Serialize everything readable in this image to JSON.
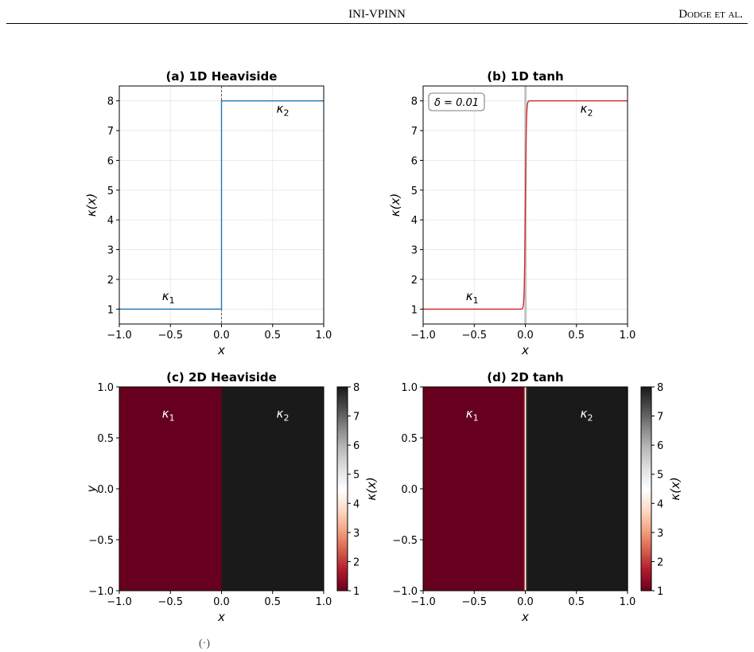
{
  "header": {
    "title": "INI-VPINN",
    "authors": "Dodge et al."
  },
  "caption_fragment": "(·)",
  "chart_data": [
    {
      "id": "a",
      "type": "line",
      "title": "(a) 1D Heaviside",
      "xlabel": "x",
      "ylabel": "κ(x)",
      "xlim": [
        -1.0,
        1.0
      ],
      "ylim": [
        0.5,
        8.5
      ],
      "xticks": [
        -1.0,
        -0.5,
        0.0,
        0.5,
        1.0
      ],
      "xtick_labels": [
        "−1.0",
        "−0.5",
        "0.0",
        "0.5",
        "1.0"
      ],
      "yticks": [
        1,
        2,
        3,
        4,
        5,
        6,
        7,
        8
      ],
      "ytick_labels": [
        "1",
        "2",
        "3",
        "4",
        "5",
        "6",
        "7",
        "8"
      ],
      "grid": true,
      "series": [
        {
          "color": "#1f77b4",
          "x": [
            -1.0,
            0.0,
            0.0,
            1.0
          ],
          "y": [
            1,
            1,
            8,
            8
          ]
        }
      ],
      "vline": {
        "x": 0.0,
        "color": "#333333",
        "style": "dashed"
      },
      "annotations": [
        {
          "base": "κ",
          "sub": "1",
          "x": -0.52,
          "y": 1.3
        },
        {
          "base": "κ",
          "sub": "2",
          "x": 0.6,
          "y": 7.6
        }
      ]
    },
    {
      "id": "b",
      "type": "line",
      "title": "(b) 1D tanh",
      "xlabel": "x",
      "ylabel": "κ(x)",
      "xlim": [
        -1.0,
        1.0
      ],
      "ylim": [
        0.5,
        8.5
      ],
      "xticks": [
        -1.0,
        -0.5,
        0.0,
        0.5,
        1.0
      ],
      "xtick_labels": [
        "−1.0",
        "−0.5",
        "0.0",
        "0.5",
        "1.0"
      ],
      "yticks": [
        1,
        2,
        3,
        4,
        5,
        6,
        7,
        8
      ],
      "ytick_labels": [
        "1",
        "2",
        "3",
        "4",
        "5",
        "6",
        "7",
        "8"
      ],
      "grid": true,
      "series": [
        {
          "color": "#d62728",
          "function": "1 + 3.5*(1 + tanh(x/delta))",
          "delta": 0.01
        }
      ],
      "band": {
        "x": [
          -0.01,
          0.01
        ],
        "color": "#bbbbbb"
      },
      "textbox": "δ = 0.01",
      "annotations": [
        {
          "base": "κ",
          "sub": "1",
          "x": -0.52,
          "y": 1.3
        },
        {
          "base": "κ",
          "sub": "2",
          "x": 0.6,
          "y": 7.6
        }
      ]
    },
    {
      "id": "c",
      "type": "heatmap",
      "title": "(c) 2D Heaviside",
      "xlabel": "x",
      "ylabel": "y",
      "xlim": [
        -1.0,
        1.0
      ],
      "ylim": [
        -1.0,
        1.0
      ],
      "xticks": [
        -1.0,
        -0.5,
        0.0,
        0.5,
        1.0
      ],
      "xtick_labels": [
        "−1.0",
        "−0.5",
        "0.0",
        "0.5",
        "1.0"
      ],
      "yticks": [
        -1.0,
        -0.5,
        0.0,
        0.5,
        1.0
      ],
      "ytick_labels": [
        "−1.0",
        "−0.5",
        "0.0",
        "0.5",
        "1.0"
      ],
      "regions": [
        {
          "x": [
            -1.0,
            0.0
          ],
          "value": 1
        },
        {
          "x": [
            0.0,
            1.0
          ],
          "value": 8
        }
      ],
      "colorbar": {
        "label": "κ(x)",
        "range": [
          1,
          8
        ],
        "ticks": [
          1,
          2,
          3,
          4,
          5,
          6,
          7,
          8
        ],
        "colormap": "RdGy"
      },
      "annotations": [
        {
          "base": "κ",
          "sub": "1",
          "x": -0.52,
          "y": 0.7
        },
        {
          "base": "κ",
          "sub": "2",
          "x": 0.6,
          "y": 0.7
        }
      ]
    },
    {
      "id": "d",
      "type": "heatmap",
      "title": "(d) 2D tanh",
      "xlabel": "x",
      "ylabel": "",
      "xlim": [
        -1.0,
        1.0
      ],
      "ylim": [
        -1.0,
        1.0
      ],
      "xticks": [
        -1.0,
        -0.5,
        0.0,
        0.5,
        1.0
      ],
      "xtick_labels": [
        "−1.0",
        "−0.5",
        "0.0",
        "0.5",
        "1.0"
      ],
      "yticks": [
        -1.0,
        -0.5,
        0.0,
        0.5,
        1.0
      ],
      "ytick_labels": [
        "−1.0",
        "−0.5",
        "0.0",
        "0.5",
        "1.0"
      ],
      "function": "1 + 3.5*(1 + tanh(x/delta))",
      "delta": 0.01,
      "colorbar": {
        "label": "κ(x)",
        "range": [
          1,
          8
        ],
        "ticks": [
          1,
          2,
          3,
          4,
          5,
          6,
          7,
          8
        ],
        "colormap": "RdGy"
      },
      "annotations": [
        {
          "base": "κ",
          "sub": "1",
          "x": -0.52,
          "y": 0.7
        },
        {
          "base": "κ",
          "sub": "2",
          "x": 0.6,
          "y": 0.7
        }
      ]
    }
  ]
}
